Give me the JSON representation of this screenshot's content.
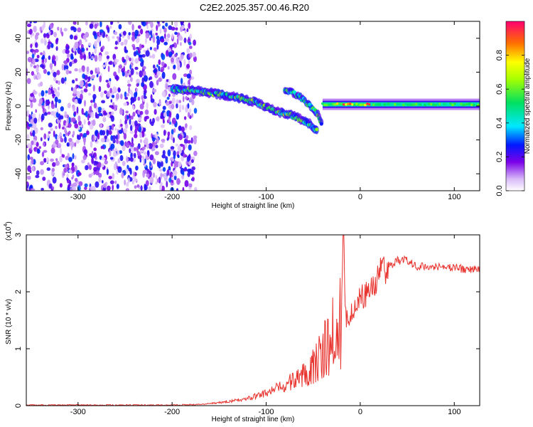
{
  "title": "C2E2.2025.357.00.46.R20",
  "chart_data": [
    {
      "type": "heatmap",
      "xlabel": "Height of straight line (km)",
      "ylabel": "Frequency (Hz)",
      "xlim": [
        -355,
        127
      ],
      "ylim": [
        -50,
        50
      ],
      "xticks": [
        -300,
        -200,
        -100,
        0,
        100
      ],
      "yticks": [
        -40,
        -20,
        0,
        20,
        40
      ],
      "colorbar": {
        "label": "Normalized spectral amplitude",
        "range": [
          0.0,
          1.0
        ],
        "ticks": [
          0.0,
          0.2,
          0.4,
          0.6,
          0.8
        ]
      },
      "features": [
        {
          "name": "noise",
          "x_range": [
            -355,
            -175
          ],
          "freq_range": [
            -50,
            50
          ],
          "amplitude": 0.15
        },
        {
          "name": "trace",
          "points": [
            [
              -200,
              10
            ],
            [
              -175,
              9
            ],
            [
              -150,
              7
            ],
            [
              -130,
              5
            ],
            [
              -110,
              2
            ],
            [
              -90,
              -3
            ],
            [
              -70,
              -6
            ],
            [
              -55,
              -10
            ],
            [
              -45,
              -15
            ]
          ],
          "amplitude": 0.45
        },
        {
          "name": "second_branch",
          "points": [
            [
              -80,
              10
            ],
            [
              -65,
              6
            ],
            [
              -55,
              1
            ],
            [
              -45,
              -5
            ],
            [
              -40,
              -12
            ]
          ],
          "amplitude": 0.4
        },
        {
          "name": "flat_trace",
          "x_range": [
            -40,
            127
          ],
          "freq": 1,
          "amplitude": 0.5,
          "peak_x_range": [
            -30,
            10
          ],
          "peak_amplitude": 0.95
        }
      ]
    },
    {
      "type": "line",
      "xlabel": "Height of straight line (km)",
      "ylabel": "SNR (10 * v/v)",
      "scale_label": "(x10",
      "scale_exponent": "4",
      "xlim": [
        -355,
        127
      ],
      "ylim": [
        0,
        3
      ],
      "xticks": [
        -300,
        -200,
        -100,
        0,
        100
      ],
      "yticks": [
        0,
        1,
        2,
        3
      ],
      "series": [
        {
          "name": "SNR",
          "color": "#e8342f",
          "x": [
            -355,
            -250,
            -200,
            -170,
            -150,
            -120,
            -100,
            -80,
            -60,
            -45,
            -35,
            -25,
            -20,
            -18,
            -15,
            -10,
            0,
            10,
            20,
            30,
            40,
            50,
            60,
            70,
            80,
            90,
            100,
            110,
            127
          ],
          "y": [
            0.01,
            0.01,
            0.01,
            0.02,
            0.05,
            0.12,
            0.22,
            0.35,
            0.55,
            0.8,
            1.05,
            1.3,
            1.6,
            3.0,
            1.5,
            1.65,
            1.9,
            2.0,
            2.3,
            2.45,
            2.55,
            2.55,
            2.45,
            2.45,
            2.45,
            2.43,
            2.42,
            2.4,
            2.4
          ]
        }
      ]
    }
  ]
}
